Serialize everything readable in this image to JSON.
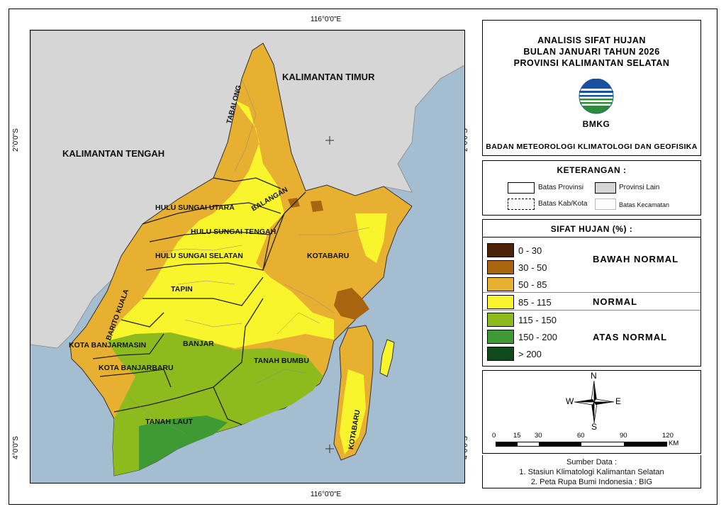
{
  "coords": {
    "top_lon": "116°0'0\"E",
    "bottom_lon": "116°0'0\"E",
    "left_lat_top": "2°0'0\"S",
    "left_lat_bottom": "4°0'0\"S",
    "right_lat_top": "2°0'0\"S",
    "right_lat_bottom": "4°0'0\"S"
  },
  "map_labels": {
    "kalimantan_timur": "KALIMANTAN TIMUR",
    "kalimantan_tengah": "KALIMANTAN TENGAH",
    "tabalong": "TABALONG",
    "balangan": "BALANGAN",
    "hsu": "HULU SUNGAI UTARA",
    "hst": "HULU SUNGAI TENGAH",
    "hss": "HULU SUNGAI SELATAN",
    "tapin": "TAPIN",
    "barito_kuala": "BARITO KUALA",
    "kota_banjarmasin": "KOTA BANJARMASIN",
    "banjar": "BANJAR",
    "kota_banjarbaru": "KOTA BANJARBARU",
    "tanah_bumbu": "TANAH BUMBU",
    "tanah_laut": "TANAH LAUT",
    "kotabaru": "KOTABARU",
    "kotabaru_island": "KOTABARU"
  },
  "title": {
    "line1": "ANALISIS SIFAT HUJAN",
    "line2": "BULAN JANUARI TAHUN 2026",
    "line3": "PROVINSI KALIMANTAN SELATAN",
    "logo_text": "BMKG",
    "agency": "BADAN METEOROLOGI KLIMATOLOGI DAN GEOFISIKA"
  },
  "keterangan": {
    "heading": "KETERANGAN :",
    "batas_provinsi": "Batas Provinsi",
    "provinsi_lain": "Provinsi Lain",
    "batas_kab": "Batas Kab/Kota",
    "batas_kec": "Batas Kecamatan"
  },
  "legend": {
    "heading": "SIFAT HUJAN (%) :",
    "classes": [
      {
        "range": "0 - 30",
        "color": "#4a2308"
      },
      {
        "range": "30 - 50",
        "color": "#a8640f"
      },
      {
        "range": "50 - 85",
        "color": "#e8b030"
      },
      {
        "range": "85 - 115",
        "color": "#f9f52c"
      },
      {
        "range": "115 - 150",
        "color": "#8dbb1e"
      },
      {
        "range": "150 - 200",
        "color": "#3e9b34"
      },
      {
        "range": "> 200",
        "color": "#0f4a1a"
      }
    ],
    "cat_bawah": "BAWAH NORMAL",
    "cat_normal": "NORMAL",
    "cat_atas": "ATAS NORMAL"
  },
  "compass": {
    "n": "N",
    "s": "S",
    "e": "E",
    "w": "W"
  },
  "scale": {
    "ticks": [
      "0",
      "15",
      "30",
      "60",
      "90",
      "120"
    ],
    "unit": "KM"
  },
  "source": {
    "heading": "Sumber Data :",
    "line1": "1. Stasiun Klimatologi Kalimantan Selatan",
    "line2": "2. Peta Rupa Bumi Indonesia : BIG"
  },
  "colors": {
    "sea": "#a4bdd0",
    "other_province": "#d6d6d6",
    "logo_blue": "#1a4fa0",
    "logo_green": "#2e8b3a"
  }
}
